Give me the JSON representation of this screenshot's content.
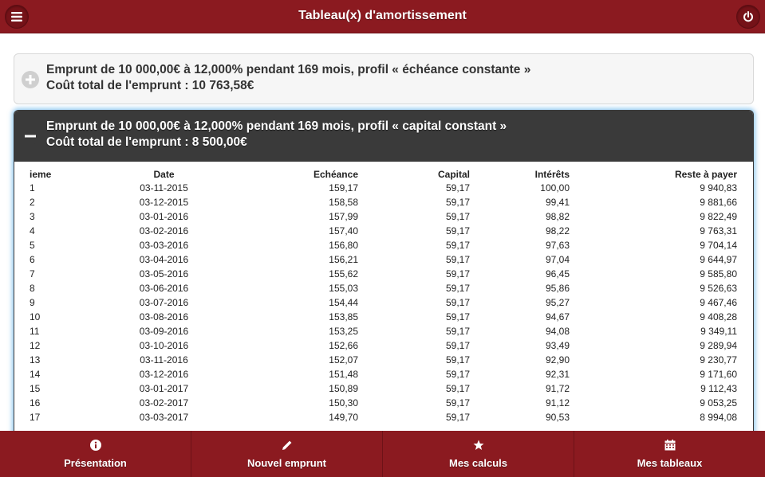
{
  "header": {
    "title": "Tableau(x) d'amortissement",
    "menu_icon": "hamburger-menu-icon",
    "power_icon": "power-icon"
  },
  "loans": [
    {
      "line1": "Emprunt de 10 000,00€ à 12,000% pendant 169 mois, profil « échéance constante »",
      "line2": "Coût total de l'emprunt : 10 763,58€",
      "state": "collapsed",
      "icon": "plus-icon"
    },
    {
      "line1": "Emprunt de 10 000,00€ à 12,000% pendant 169 mois, profil « capital constant »",
      "line2": "Coût total de l'emprunt : 8 500,00€",
      "state": "expanded",
      "icon": "minus-icon"
    }
  ],
  "table": {
    "headers": [
      "ieme",
      "Date",
      "Echéance",
      "Capital",
      "Intérêts",
      "Reste à payer"
    ],
    "rows": [
      [
        "1",
        "03-11-2015",
        "159,17",
        "59,17",
        "100,00",
        "9 940,83"
      ],
      [
        "2",
        "03-12-2015",
        "158,58",
        "59,17",
        "99,41",
        "9 881,66"
      ],
      [
        "3",
        "03-01-2016",
        "157,99",
        "59,17",
        "98,82",
        "9 822,49"
      ],
      [
        "4",
        "03-02-2016",
        "157,40",
        "59,17",
        "98,22",
        "9 763,31"
      ],
      [
        "5",
        "03-03-2016",
        "156,80",
        "59,17",
        "97,63",
        "9 704,14"
      ],
      [
        "6",
        "03-04-2016",
        "156,21",
        "59,17",
        "97,04",
        "9 644,97"
      ],
      [
        "7",
        "03-05-2016",
        "155,62",
        "59,17",
        "96,45",
        "9 585,80"
      ],
      [
        "8",
        "03-06-2016",
        "155,03",
        "59,17",
        "95,86",
        "9 526,63"
      ],
      [
        "9",
        "03-07-2016",
        "154,44",
        "59,17",
        "95,27",
        "9 467,46"
      ],
      [
        "10",
        "03-08-2016",
        "153,85",
        "59,17",
        "94,67",
        "9 408,28"
      ],
      [
        "11",
        "03-09-2016",
        "153,25",
        "59,17",
        "94,08",
        "9 349,11"
      ],
      [
        "12",
        "03-10-2016",
        "152,66",
        "59,17",
        "93,49",
        "9 289,94"
      ],
      [
        "13",
        "03-11-2016",
        "152,07",
        "59,17",
        "92,90",
        "9 230,77"
      ],
      [
        "14",
        "03-12-2016",
        "151,48",
        "59,17",
        "92,31",
        "9 171,60"
      ],
      [
        "15",
        "03-01-2017",
        "150,89",
        "59,17",
        "91,72",
        "9 112,43"
      ],
      [
        "16",
        "03-02-2017",
        "150,30",
        "59,17",
        "91,12",
        "9 053,25"
      ],
      [
        "17",
        "03-03-2017",
        "149,70",
        "59,17",
        "90,53",
        "8 994,08"
      ]
    ]
  },
  "footer": {
    "items": [
      {
        "label": "Présentation",
        "icon": "info-icon"
      },
      {
        "label": "Nouvel emprunt",
        "icon": "pencil-icon"
      },
      {
        "label": "Mes calculs",
        "icon": "star-icon"
      },
      {
        "label": "Mes tableaux",
        "icon": "calendar-icon"
      }
    ]
  },
  "colors": {
    "brand": "#8b1a20",
    "expanded_header": "#3a3a3a",
    "focus_glow": "#3ca0e6"
  }
}
